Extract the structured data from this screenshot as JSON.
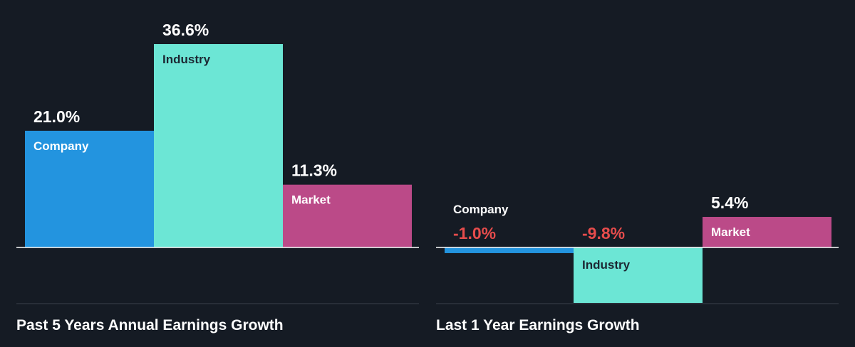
{
  "colors": {
    "company": "#2394df",
    "industry": "#6ce6d5",
    "market": "#bb4a88",
    "text": "#ffffff",
    "negative": "#e64c4c",
    "dark_text": "#1c2833",
    "baseline": "#ffffff",
    "divider": "#3a424d",
    "background": "#151b24"
  },
  "chart_data": [
    {
      "type": "bar",
      "title": "Past 5 Years Annual Earnings Growth",
      "categories": [
        "Company",
        "Industry",
        "Market"
      ],
      "values": [
        21.0,
        36.6,
        11.3
      ],
      "value_labels": [
        "21.0%",
        "36.6%",
        "11.3%"
      ],
      "ylim": [
        0,
        36.6
      ]
    },
    {
      "type": "bar",
      "title": "Last 1 Year Earnings Growth",
      "categories": [
        "Company",
        "Industry",
        "Market"
      ],
      "values": [
        -1.0,
        -9.8,
        5.4
      ],
      "value_labels": [
        "-1.0%",
        "-9.8%",
        "5.4%"
      ],
      "ylim": [
        -9.8,
        5.4
      ]
    }
  ]
}
